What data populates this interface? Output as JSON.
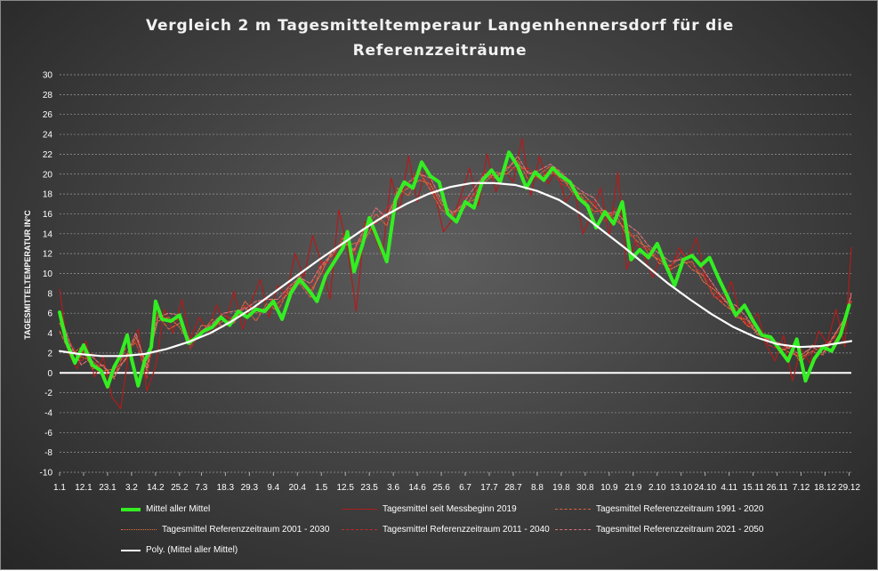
{
  "chart_data": {
    "type": "line",
    "title": "Vergleich  2 m  Tagesmitteltemperaur  Langenhennersdorf  für  die Referenzzeiträume",
    "title_lines": [
      "Vergleich  2 m  Tagesmitteltemperaur  Langenhennersdorf  für  die",
      "Referenzzeiträume"
    ],
    "xlabel": "",
    "ylabel": "TAGESMITTELTEMPERATUR IN°C",
    "ylim": [
      -10,
      30
    ],
    "y_ticks": [
      -10,
      -8,
      -6,
      -4,
      -2,
      0,
      2,
      4,
      6,
      8,
      10,
      12,
      14,
      16,
      18,
      20,
      22,
      24,
      26,
      28,
      30
    ],
    "x_day_range": [
      1,
      364
    ],
    "x_ticks": [
      "1.1",
      "12.1",
      "23.1",
      "3.2",
      "14.2",
      "25.2",
      "7.3",
      "18.3",
      "29.3",
      "9.4",
      "20.4",
      "1.5",
      "12.5",
      "23.5",
      "3.6",
      "14.6",
      "25.6",
      "6.7",
      "17.7",
      "28.7",
      "8.8",
      "19.8",
      "30.8",
      "10.9",
      "21.9",
      "2.10",
      "13.10",
      "24.10",
      "4.11",
      "15.11",
      "26.11",
      "7.12",
      "18.12",
      "29.12"
    ],
    "x_tick_labels": [
      "1.1",
      "12.1",
      "23.1",
      "3.2",
      "14.2",
      "25.2",
      "7.3",
      "18.3",
      "29.3",
      "9.4",
      "20.4",
      "1.5",
      "12.5",
      "23.5",
      "3.6",
      "14.6",
      "25.6",
      "6.7",
      "17.7",
      "28.7",
      "8.8",
      "19.8",
      "30.8",
      "10.9",
      "21.9",
      "2.10",
      "13.10",
      "24.10",
      "4.11",
      "15.11",
      "26.11",
      "7.12",
      "18.12",
      "29.12"
    ],
    "grid": true,
    "legend_position": "bottom",
    "key_points": {
      "x_day": [
        1,
        12,
        23,
        34,
        45,
        56,
        66,
        77,
        88,
        99,
        110,
        121,
        132,
        143,
        154,
        165,
        176,
        187,
        198,
        209,
        220,
        231,
        242,
        253,
        264,
        275,
        286,
        297,
        308,
        319,
        330,
        341,
        352,
        363
      ],
      "x_label": [
        "1.1",
        "12.1",
        "23.1",
        "3.2",
        "14.2",
        "25.2",
        "7.3",
        "18.3",
        "29.3",
        "9.4",
        "20.4",
        "1.5",
        "12.5",
        "23.5",
        "3.6",
        "14.6",
        "25.6",
        "6.7",
        "17.7",
        "28.7",
        "8.8",
        "19.8",
        "30.8",
        "10.9",
        "21.9",
        "2.10",
        "13.10",
        "24.10",
        "4.11",
        "15.11",
        "26.11",
        "7.12",
        "18.12",
        "29.12"
      ]
    },
    "series": [
      {
        "name": "Mittel aller Mittel",
        "color": "#33ee22",
        "style": "thick",
        "x": [
          1,
          4,
          8,
          12,
          16,
          20,
          23,
          26,
          29,
          32,
          34,
          37,
          40,
          43,
          45,
          48,
          52,
          56,
          60,
          64,
          67,
          71,
          75,
          79,
          83,
          87,
          91,
          95,
          99,
          103,
          107,
          111,
          115,
          119,
          123,
          127,
          131,
          133,
          136,
          140,
          143,
          147,
          151,
          155,
          159,
          163,
          167,
          171,
          175,
          179,
          183,
          187,
          191,
          195,
          199,
          203,
          207,
          211,
          215,
          219,
          223,
          227,
          231,
          235,
          239,
          243,
          247,
          251,
          255,
          259,
          263,
          267,
          271,
          275,
          279,
          283,
          287,
          291,
          295,
          299,
          303,
          307,
          311,
          315,
          319,
          323,
          327,
          331,
          335,
          339,
          343,
          347,
          351,
          355,
          359,
          363
        ],
        "y": [
          6.1,
          3.2,
          1.0,
          2.8,
          0.8,
          0.2,
          -1.4,
          0.6,
          1.8,
          3.8,
          1.4,
          -1.3,
          1.2,
          2.6,
          7.2,
          5.4,
          5.2,
          5.8,
          3.0,
          3.6,
          4.2,
          4.6,
          5.6,
          4.8,
          6.2,
          5.6,
          6.4,
          6.2,
          7.2,
          5.4,
          8.0,
          9.4,
          8.4,
          7.2,
          9.8,
          11.2,
          12.6,
          14.2,
          10.2,
          13.0,
          15.6,
          13.4,
          11.2,
          17.4,
          19.2,
          18.6,
          21.2,
          19.8,
          19.2,
          16.0,
          15.2,
          17.2,
          16.6,
          19.4,
          20.4,
          19.2,
          22.2,
          20.8,
          18.6,
          20.2,
          19.4,
          20.6,
          19.8,
          19.2,
          17.6,
          16.8,
          14.6,
          16.2,
          15.0,
          17.2,
          11.4,
          12.4,
          11.6,
          13.0,
          10.8,
          8.8,
          11.4,
          11.8,
          10.8,
          11.6,
          9.6,
          7.8,
          5.8,
          6.8,
          5.2,
          3.8,
          3.6,
          2.4,
          1.2,
          3.4,
          -0.8,
          1.4,
          2.6,
          2.2,
          3.8,
          6.8
        ]
      },
      {
        "name": "Tagesmittel seit Messbeginn 2019",
        "color": "#b31b1b",
        "style": "solid",
        "x": [
          1,
          5,
          9,
          13,
          17,
          21,
          25,
          29,
          33,
          37,
          41,
          45,
          49,
          53,
          57,
          61,
          65,
          69,
          73,
          77,
          81,
          85,
          89,
          93,
          97,
          101,
          105,
          109,
          113,
          117,
          121,
          125,
          129,
          133,
          137,
          141,
          145,
          149,
          153,
          157,
          161,
          165,
          169,
          173,
          177,
          181,
          185,
          189,
          193,
          197,
          201,
          205,
          209,
          213,
          217,
          221,
          225,
          229,
          233,
          237,
          241,
          245,
          249,
          253,
          257,
          261,
          265,
          269,
          273,
          277,
          281,
          285,
          289,
          293,
          297,
          301,
          305,
          309,
          313,
          317,
          321,
          325,
          329,
          333,
          337,
          341,
          345,
          349,
          353,
          357,
          361,
          364
        ],
        "y": [
          8.4,
          2.0,
          0.4,
          3.2,
          -0.4,
          1.6,
          -2.4,
          -3.6,
          2.6,
          4.4,
          -1.8,
          0.6,
          6.4,
          4.0,
          7.4,
          3.4,
          5.6,
          4.2,
          6.8,
          5.0,
          8.2,
          4.4,
          7.2,
          9.4,
          5.6,
          8.8,
          7.8,
          12.0,
          9.6,
          13.8,
          11.2,
          7.4,
          16.4,
          12.6,
          6.2,
          15.2,
          14.0,
          11.8,
          19.6,
          16.4,
          21.8,
          17.2,
          20.8,
          18.0,
          14.2,
          15.4,
          17.8,
          20.6,
          16.8,
          22.0,
          18.2,
          20.4,
          19.2,
          23.6,
          17.8,
          21.8,
          19.0,
          20.6,
          17.2,
          18.4,
          14.0,
          16.0,
          18.6,
          13.8,
          20.2,
          10.4,
          13.2,
          11.8,
          9.6,
          12.0,
          10.2,
          12.6,
          11.4,
          13.6,
          9.8,
          8.4,
          7.0,
          9.2,
          5.8,
          4.6,
          6.0,
          2.8,
          1.2,
          3.8,
          -0.8,
          2.4,
          1.0,
          4.2,
          3.0,
          6.4,
          2.6,
          12.6
        ]
      },
      {
        "name": "Tagesmittel Referenzzeitraum 1991 - 2020",
        "color": "#e0603a",
        "style": "dashed",
        "x": [
          1,
          6,
          11,
          16,
          21,
          26,
          31,
          36,
          41,
          46,
          51,
          56,
          61,
          66,
          71,
          76,
          81,
          86,
          91,
          96,
          101,
          106,
          111,
          116,
          121,
          126,
          131,
          136,
          141,
          146,
          151,
          156,
          161,
          166,
          171,
          176,
          181,
          186,
          191,
          196,
          201,
          206,
          211,
          216,
          221,
          226,
          231,
          236,
          241,
          246,
          251,
          256,
          261,
          266,
          271,
          276,
          281,
          286,
          291,
          296,
          301,
          306,
          311,
          316,
          321,
          326,
          331,
          336,
          341,
          346,
          351,
          356,
          361,
          364
        ],
        "y": [
          4.2,
          1.8,
          2.6,
          0.4,
          0.8,
          -0.6,
          2.4,
          3.0,
          0.2,
          5.8,
          4.4,
          5.0,
          3.2,
          4.0,
          5.4,
          4.6,
          5.8,
          6.6,
          5.2,
          7.0,
          6.2,
          8.4,
          9.0,
          7.6,
          10.6,
          11.8,
          13.6,
          12.2,
          14.2,
          16.0,
          14.8,
          18.6,
          17.8,
          20.2,
          18.4,
          16.4,
          15.8,
          17.0,
          17.4,
          19.8,
          19.6,
          20.6,
          21.4,
          19.4,
          20.0,
          20.8,
          19.4,
          18.8,
          17.6,
          16.2,
          16.4,
          15.4,
          14.4,
          13.2,
          12.6,
          11.0,
          10.8,
          11.6,
          10.4,
          9.8,
          7.8,
          6.8,
          6.0,
          4.8,
          4.2,
          3.2,
          2.6,
          2.0,
          1.6,
          2.2,
          1.8,
          3.6,
          5.6,
          7.8
        ]
      },
      {
        "name": "Tagesmittel Referenzzeitraum 2001 - 2030",
        "color": "#e8703e",
        "style": "dotted",
        "x": [
          1,
          6,
          11,
          16,
          21,
          26,
          31,
          36,
          41,
          46,
          51,
          56,
          61,
          66,
          71,
          76,
          81,
          86,
          91,
          96,
          101,
          106,
          111,
          116,
          121,
          126,
          131,
          136,
          141,
          146,
          151,
          156,
          161,
          166,
          171,
          176,
          181,
          186,
          191,
          196,
          201,
          206,
          211,
          216,
          221,
          226,
          231,
          236,
          241,
          246,
          251,
          256,
          261,
          266,
          271,
          276,
          281,
          286,
          291,
          296,
          301,
          306,
          311,
          316,
          321,
          326,
          331,
          336,
          341,
          346,
          351,
          356,
          361,
          364
        ],
        "y": [
          5.0,
          2.4,
          1.6,
          1.2,
          0.2,
          0.4,
          1.2,
          3.6,
          0.8,
          5.2,
          5.6,
          4.6,
          2.8,
          4.8,
          4.6,
          5.2,
          5.0,
          7.2,
          6.0,
          6.6,
          7.0,
          8.0,
          9.8,
          8.2,
          10.0,
          12.4,
          12.8,
          13.0,
          13.4,
          15.4,
          15.8,
          18.0,
          18.6,
          19.4,
          19.0,
          17.0,
          16.2,
          16.4,
          18.0,
          19.2,
          20.2,
          20.0,
          21.0,
          20.2,
          19.6,
          20.2,
          19.8,
          18.2,
          18.0,
          16.8,
          15.8,
          16.0,
          13.8,
          13.8,
          12.0,
          11.4,
          10.4,
          11.0,
          11.2,
          9.2,
          8.4,
          7.4,
          5.6,
          5.4,
          3.8,
          3.8,
          2.2,
          2.6,
          1.0,
          2.8,
          2.4,
          3.0,
          4.8,
          7.2
        ]
      },
      {
        "name": "Tagesmittel Referenzzeitraum 2011 - 2040",
        "color": "#c8282a",
        "style": "dashed",
        "x": [
          1,
          6,
          11,
          16,
          21,
          26,
          31,
          36,
          41,
          46,
          51,
          56,
          61,
          66,
          71,
          76,
          81,
          86,
          91,
          96,
          101,
          106,
          111,
          116,
          121,
          126,
          131,
          136,
          141,
          146,
          151,
          156,
          161,
          166,
          171,
          176,
          181,
          186,
          191,
          196,
          201,
          206,
          211,
          216,
          221,
          226,
          231,
          236,
          241,
          246,
          251,
          256,
          261,
          266,
          271,
          276,
          281,
          286,
          291,
          296,
          301,
          306,
          311,
          316,
          321,
          326,
          331,
          336,
          341,
          346,
          351,
          356,
          361,
          364
        ],
        "y": [
          5.6,
          3.0,
          1.2,
          2.0,
          -0.2,
          0.0,
          1.8,
          3.2,
          -0.6,
          6.2,
          5.2,
          5.4,
          2.4,
          4.4,
          4.0,
          5.8,
          5.4,
          6.8,
          6.6,
          7.6,
          6.6,
          8.8,
          9.2,
          8.6,
          11.2,
          11.0,
          14.0,
          11.8,
          15.0,
          15.0,
          16.6,
          17.4,
          19.0,
          20.6,
          18.6,
          16.8,
          15.4,
          17.6,
          17.8,
          20.4,
          19.0,
          20.8,
          20.4,
          20.6,
          19.4,
          20.6,
          19.0,
          18.6,
          17.4,
          17.2,
          15.2,
          16.6,
          14.8,
          12.8,
          12.4,
          11.6,
          10.6,
          12.2,
          10.8,
          10.0,
          7.6,
          7.8,
          6.4,
          5.0,
          4.6,
          2.8,
          2.4,
          2.8,
          1.4,
          2.0,
          2.8,
          3.4,
          5.2,
          7.4
        ]
      },
      {
        "name": "Tagesmittel Referenzzeitraum 2021 - 2050",
        "color": "#e0707a",
        "style": "dashed",
        "x": [
          1,
          6,
          11,
          16,
          21,
          26,
          31,
          36,
          41,
          46,
          51,
          56,
          61,
          66,
          71,
          76,
          81,
          86,
          91,
          96,
          101,
          106,
          111,
          116,
          121,
          126,
          131,
          136,
          141,
          146,
          151,
          156,
          161,
          166,
          171,
          176,
          181,
          186,
          191,
          196,
          201,
          206,
          211,
          216,
          221,
          226,
          231,
          236,
          241,
          246,
          251,
          256,
          261,
          266,
          271,
          276,
          281,
          286,
          291,
          296,
          301,
          306,
          311,
          316,
          321,
          326,
          331,
          336,
          341,
          346,
          351,
          356,
          361,
          364
        ],
        "y": [
          6.0,
          2.8,
          0.8,
          1.6,
          0.6,
          -0.4,
          1.4,
          4.0,
          0.4,
          5.6,
          6.0,
          5.8,
          3.0,
          4.2,
          5.0,
          6.0,
          6.2,
          6.4,
          7.2,
          7.4,
          7.4,
          8.6,
          9.6,
          9.0,
          10.8,
          12.0,
          13.2,
          12.4,
          14.6,
          16.6,
          15.6,
          18.2,
          19.2,
          20.0,
          19.6,
          17.4,
          16.0,
          17.0,
          18.6,
          20.0,
          19.8,
          20.4,
          21.8,
          20.0,
          20.4,
          21.0,
          20.2,
          19.0,
          18.2,
          17.6,
          16.0,
          16.2,
          15.0,
          14.2,
          12.8,
          12.0,
          11.2,
          11.4,
          11.8,
          10.4,
          8.8,
          7.2,
          6.8,
          5.6,
          4.0,
          3.4,
          3.0,
          2.4,
          1.8,
          2.6,
          2.0,
          3.8,
          5.4,
          8.0
        ]
      },
      {
        "name": "Poly. (Mittel aller Mittel)",
        "color": "#ffffff",
        "style": "smooth",
        "x": [
          1,
          10,
          20,
          30,
          40,
          50,
          60,
          70,
          80,
          90,
          100,
          110,
          120,
          130,
          140,
          150,
          160,
          170,
          180,
          190,
          200,
          210,
          220,
          230,
          240,
          250,
          260,
          270,
          280,
          290,
          300,
          310,
          320,
          330,
          340,
          350,
          364
        ],
        "y": [
          2.2,
          1.9,
          1.7,
          1.7,
          1.9,
          2.4,
          3.1,
          4.0,
          5.2,
          6.6,
          8.2,
          9.8,
          11.4,
          12.9,
          14.4,
          15.8,
          17.0,
          18.0,
          18.7,
          19.1,
          19.1,
          18.9,
          18.3,
          17.4,
          16.0,
          14.3,
          12.6,
          10.8,
          9.0,
          7.4,
          5.9,
          4.6,
          3.6,
          2.9,
          2.6,
          2.7,
          3.2
        ]
      }
    ]
  }
}
